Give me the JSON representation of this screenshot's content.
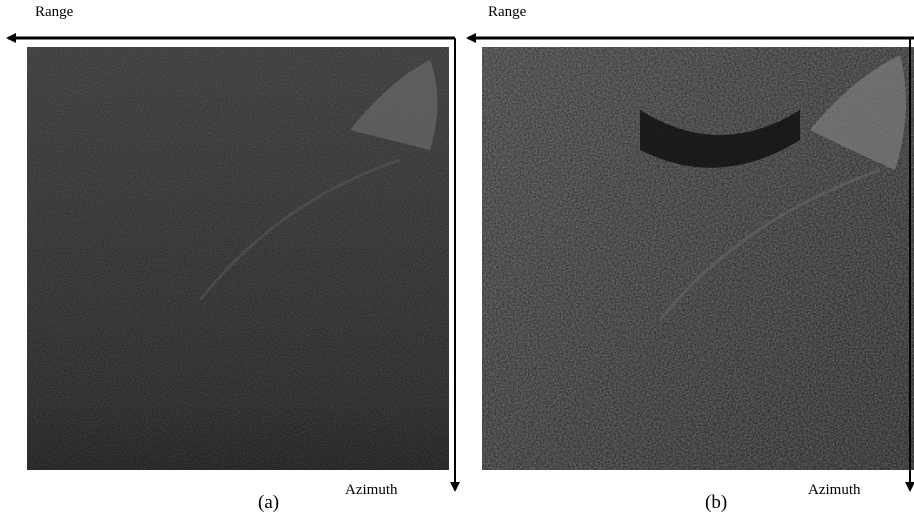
{
  "panels": [
    {
      "range_label": "Range",
      "azimuth_label": "Azimuth",
      "caption": "(a)"
    },
    {
      "range_label": "Range",
      "azimuth_label": "Azimuth",
      "caption": "(b)"
    }
  ]
}
